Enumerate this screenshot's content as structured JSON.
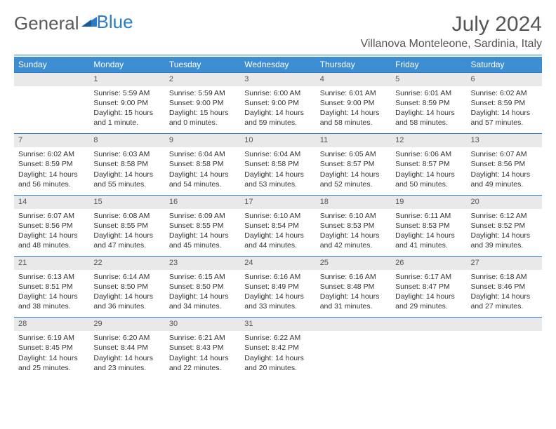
{
  "logo": {
    "part1": "General",
    "part2": "Blue"
  },
  "month_title": "July 2024",
  "location": "Villanova Monteleone, Sardinia, Italy",
  "colors": {
    "header_bg": "#3c8dd2",
    "header_text": "#ffffff",
    "daynum_bg": "#e9e9e9",
    "rule": "#2c7bc4",
    "text": "#333333",
    "logo_gray": "#5a5a5a",
    "logo_blue": "#2c7bc4"
  },
  "weekday_headers": [
    "Sunday",
    "Monday",
    "Tuesday",
    "Wednesday",
    "Thursday",
    "Friday",
    "Saturday"
  ],
  "weeks": [
    [
      {
        "num": "",
        "lines": [
          "",
          "",
          "",
          ""
        ]
      },
      {
        "num": "1",
        "lines": [
          "Sunrise: 5:59 AM",
          "Sunset: 9:00 PM",
          "Daylight: 15 hours",
          "and 1 minute."
        ]
      },
      {
        "num": "2",
        "lines": [
          "Sunrise: 5:59 AM",
          "Sunset: 9:00 PM",
          "Daylight: 15 hours",
          "and 0 minutes."
        ]
      },
      {
        "num": "3",
        "lines": [
          "Sunrise: 6:00 AM",
          "Sunset: 9:00 PM",
          "Daylight: 14 hours",
          "and 59 minutes."
        ]
      },
      {
        "num": "4",
        "lines": [
          "Sunrise: 6:01 AM",
          "Sunset: 9:00 PM",
          "Daylight: 14 hours",
          "and 58 minutes."
        ]
      },
      {
        "num": "5",
        "lines": [
          "Sunrise: 6:01 AM",
          "Sunset: 8:59 PM",
          "Daylight: 14 hours",
          "and 58 minutes."
        ]
      },
      {
        "num": "6",
        "lines": [
          "Sunrise: 6:02 AM",
          "Sunset: 8:59 PM",
          "Daylight: 14 hours",
          "and 57 minutes."
        ]
      }
    ],
    [
      {
        "num": "7",
        "lines": [
          "Sunrise: 6:02 AM",
          "Sunset: 8:59 PM",
          "Daylight: 14 hours",
          "and 56 minutes."
        ]
      },
      {
        "num": "8",
        "lines": [
          "Sunrise: 6:03 AM",
          "Sunset: 8:58 PM",
          "Daylight: 14 hours",
          "and 55 minutes."
        ]
      },
      {
        "num": "9",
        "lines": [
          "Sunrise: 6:04 AM",
          "Sunset: 8:58 PM",
          "Daylight: 14 hours",
          "and 54 minutes."
        ]
      },
      {
        "num": "10",
        "lines": [
          "Sunrise: 6:04 AM",
          "Sunset: 8:58 PM",
          "Daylight: 14 hours",
          "and 53 minutes."
        ]
      },
      {
        "num": "11",
        "lines": [
          "Sunrise: 6:05 AM",
          "Sunset: 8:57 PM",
          "Daylight: 14 hours",
          "and 52 minutes."
        ]
      },
      {
        "num": "12",
        "lines": [
          "Sunrise: 6:06 AM",
          "Sunset: 8:57 PM",
          "Daylight: 14 hours",
          "and 50 minutes."
        ]
      },
      {
        "num": "13",
        "lines": [
          "Sunrise: 6:07 AM",
          "Sunset: 8:56 PM",
          "Daylight: 14 hours",
          "and 49 minutes."
        ]
      }
    ],
    [
      {
        "num": "14",
        "lines": [
          "Sunrise: 6:07 AM",
          "Sunset: 8:56 PM",
          "Daylight: 14 hours",
          "and 48 minutes."
        ]
      },
      {
        "num": "15",
        "lines": [
          "Sunrise: 6:08 AM",
          "Sunset: 8:55 PM",
          "Daylight: 14 hours",
          "and 47 minutes."
        ]
      },
      {
        "num": "16",
        "lines": [
          "Sunrise: 6:09 AM",
          "Sunset: 8:55 PM",
          "Daylight: 14 hours",
          "and 45 minutes."
        ]
      },
      {
        "num": "17",
        "lines": [
          "Sunrise: 6:10 AM",
          "Sunset: 8:54 PM",
          "Daylight: 14 hours",
          "and 44 minutes."
        ]
      },
      {
        "num": "18",
        "lines": [
          "Sunrise: 6:10 AM",
          "Sunset: 8:53 PM",
          "Daylight: 14 hours",
          "and 42 minutes."
        ]
      },
      {
        "num": "19",
        "lines": [
          "Sunrise: 6:11 AM",
          "Sunset: 8:53 PM",
          "Daylight: 14 hours",
          "and 41 minutes."
        ]
      },
      {
        "num": "20",
        "lines": [
          "Sunrise: 6:12 AM",
          "Sunset: 8:52 PM",
          "Daylight: 14 hours",
          "and 39 minutes."
        ]
      }
    ],
    [
      {
        "num": "21",
        "lines": [
          "Sunrise: 6:13 AM",
          "Sunset: 8:51 PM",
          "Daylight: 14 hours",
          "and 38 minutes."
        ]
      },
      {
        "num": "22",
        "lines": [
          "Sunrise: 6:14 AM",
          "Sunset: 8:50 PM",
          "Daylight: 14 hours",
          "and 36 minutes."
        ]
      },
      {
        "num": "23",
        "lines": [
          "Sunrise: 6:15 AM",
          "Sunset: 8:50 PM",
          "Daylight: 14 hours",
          "and 34 minutes."
        ]
      },
      {
        "num": "24",
        "lines": [
          "Sunrise: 6:16 AM",
          "Sunset: 8:49 PM",
          "Daylight: 14 hours",
          "and 33 minutes."
        ]
      },
      {
        "num": "25",
        "lines": [
          "Sunrise: 6:16 AM",
          "Sunset: 8:48 PM",
          "Daylight: 14 hours",
          "and 31 minutes."
        ]
      },
      {
        "num": "26",
        "lines": [
          "Sunrise: 6:17 AM",
          "Sunset: 8:47 PM",
          "Daylight: 14 hours",
          "and 29 minutes."
        ]
      },
      {
        "num": "27",
        "lines": [
          "Sunrise: 6:18 AM",
          "Sunset: 8:46 PM",
          "Daylight: 14 hours",
          "and 27 minutes."
        ]
      }
    ],
    [
      {
        "num": "28",
        "lines": [
          "Sunrise: 6:19 AM",
          "Sunset: 8:45 PM",
          "Daylight: 14 hours",
          "and 25 minutes."
        ]
      },
      {
        "num": "29",
        "lines": [
          "Sunrise: 6:20 AM",
          "Sunset: 8:44 PM",
          "Daylight: 14 hours",
          "and 23 minutes."
        ]
      },
      {
        "num": "30",
        "lines": [
          "Sunrise: 6:21 AM",
          "Sunset: 8:43 PM",
          "Daylight: 14 hours",
          "and 22 minutes."
        ]
      },
      {
        "num": "31",
        "lines": [
          "Sunrise: 6:22 AM",
          "Sunset: 8:42 PM",
          "Daylight: 14 hours",
          "and 20 minutes."
        ]
      },
      {
        "num": "",
        "lines": [
          "",
          "",
          "",
          ""
        ]
      },
      {
        "num": "",
        "lines": [
          "",
          "",
          "",
          ""
        ]
      },
      {
        "num": "",
        "lines": [
          "",
          "",
          "",
          ""
        ]
      }
    ]
  ]
}
